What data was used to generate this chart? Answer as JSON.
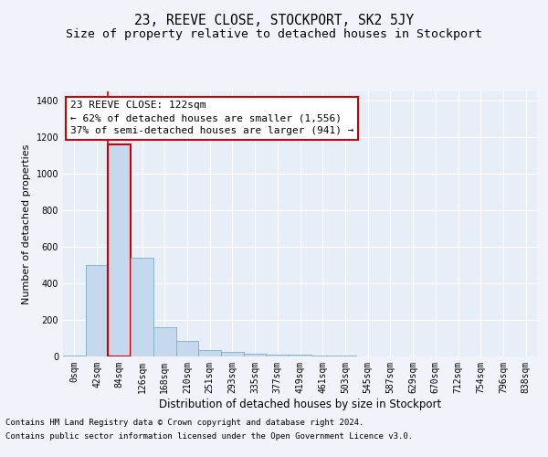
{
  "title": "23, REEVE CLOSE, STOCKPORT, SK2 5JY",
  "subtitle": "Size of property relative to detached houses in Stockport",
  "xlabel": "Distribution of detached houses by size in Stockport",
  "ylabel": "Number of detached properties",
  "footer1": "Contains HM Land Registry data © Crown copyright and database right 2024.",
  "footer2": "Contains public sector information licensed under the Open Government Licence v3.0.",
  "bin_labels": [
    "0sqm",
    "42sqm",
    "84sqm",
    "126sqm",
    "168sqm",
    "210sqm",
    "251sqm",
    "293sqm",
    "335sqm",
    "377sqm",
    "419sqm",
    "461sqm",
    "503sqm",
    "545sqm",
    "587sqm",
    "629sqm",
    "670sqm",
    "712sqm",
    "754sqm",
    "796sqm",
    "838sqm"
  ],
  "bar_values": [
    5,
    500,
    1160,
    540,
    160,
    85,
    35,
    25,
    15,
    10,
    8,
    4,
    3,
    2,
    1,
    1,
    1,
    1,
    0,
    0,
    0
  ],
  "bar_color": "#c5d8ed",
  "bar_edge_color": "#7aafc8",
  "highlight_bar_edge_color": "#cc0000",
  "highlight_bar_index": 2,
  "red_line_x": 1.5,
  "annotation_box_text": "23 REEVE CLOSE: 122sqm\n← 62% of detached houses are smaller (1,556)\n37% of semi-detached houses are larger (941) →",
  "ylim": [
    0,
    1450
  ],
  "yticks": [
    0,
    200,
    400,
    600,
    800,
    1000,
    1200,
    1400
  ],
  "fig_bg_color": "#f0f4fa",
  "plot_bg_color": "#e8eef7",
  "grid_color": "#ffffff",
  "title_fontsize": 10.5,
  "subtitle_fontsize": 9.5,
  "annotation_fontsize": 8,
  "tick_fontsize": 7,
  "ylabel_fontsize": 8,
  "xlabel_fontsize": 8.5,
  "footer_fontsize": 6.5
}
